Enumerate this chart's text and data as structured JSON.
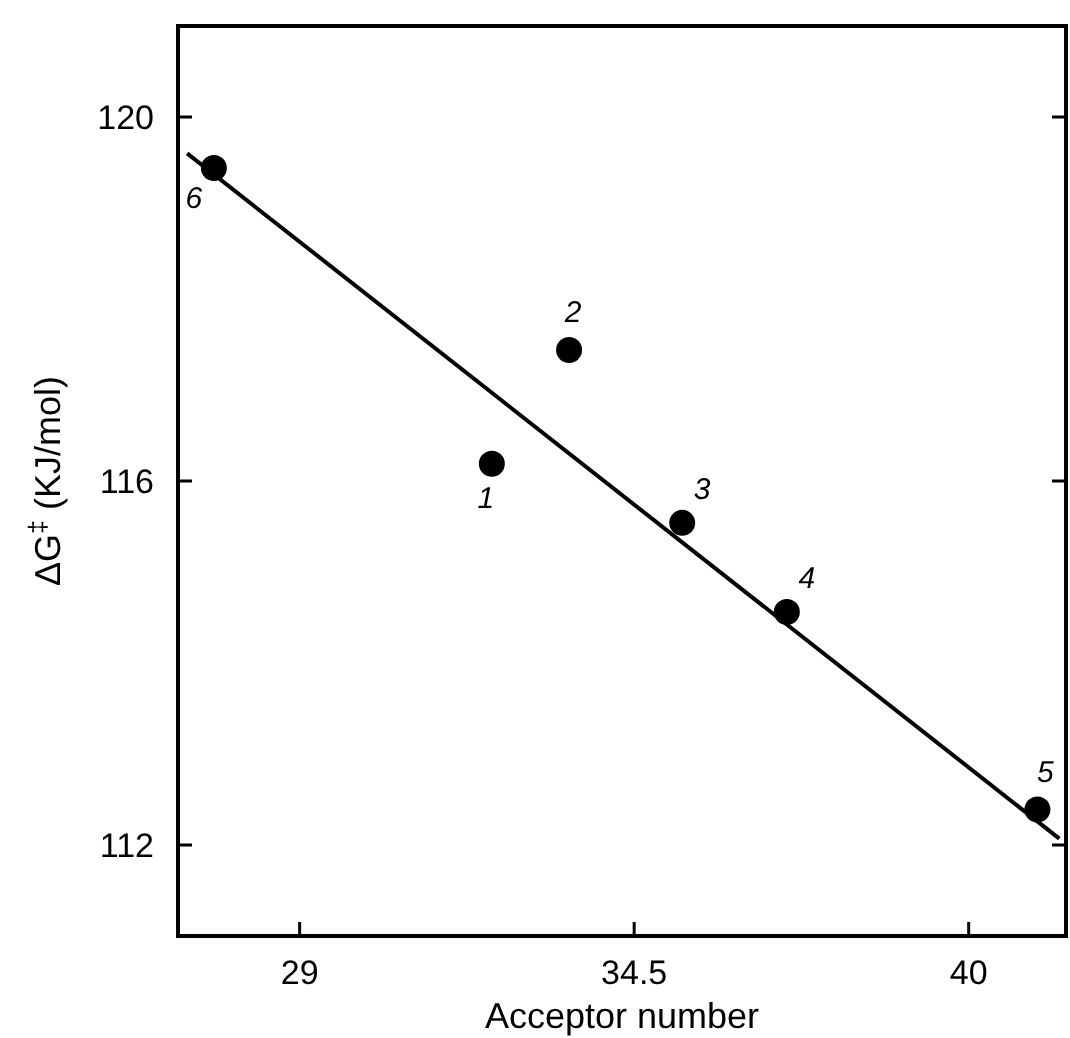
{
  "chart_data": {
    "type": "scatter",
    "xlabel": "Acceptor number",
    "ylabel": "ΔG$^{‡}$ (KJ/mol)",
    "xlim": [
      27,
      41.6
    ],
    "ylim": [
      111,
      121
    ],
    "xticks": [
      29,
      34.5,
      40
    ],
    "yticks": [
      112,
      116,
      120
    ],
    "grid": false,
    "series": [
      {
        "color": "#000000",
        "marker": "circle",
        "x": [
          32.16,
          33.43,
          35.29,
          37.01,
          41.13,
          27.59
        ],
        "values": [
          116.19,
          117.44,
          115.54,
          114.56,
          112.39,
          119.44
        ]
      },
      {
        "type": "line",
        "color": "#000000",
        "marker": "none",
        "line_style": "solid",
        "x": [
          27.15,
          41.49
        ],
        "values": [
          119.6,
          112.07
        ]
      }
    ],
    "annotations": [
      {
        "text": "1",
        "x": 32.16,
        "y": 116.19
      },
      {
        "text": "2",
        "x": 33.43,
        "y": 117.44
      },
      {
        "text": "3",
        "x": 35.29,
        "y": 115.54
      },
      {
        "text": "4",
        "x": 37.01,
        "y": 114.56
      },
      {
        "text": "5",
        "x": 41.13,
        "y": 112.39
      },
      {
        "text": "6",
        "x": 27.59,
        "y": 119.44
      }
    ]
  }
}
